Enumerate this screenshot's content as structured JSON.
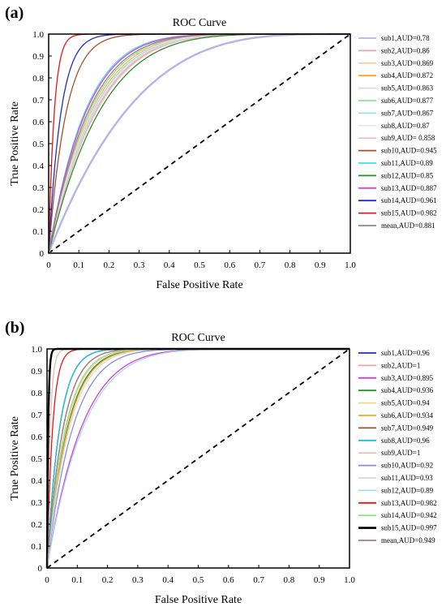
{
  "chart_data": [
    {
      "type": "line",
      "panel_label": "(a)",
      "title": "ROC Curve",
      "xlabel": "False Positive Rate",
      "ylabel": "True Positive Rate",
      "xlim": [
        0,
        1
      ],
      "ylim": [
        0,
        1
      ],
      "xticks": [
        "0",
        "0.1",
        "0.2",
        "0.3",
        "0.4",
        "0.5",
        "0.6",
        "0.7",
        "0.8",
        "0.9",
        "1.0"
      ],
      "yticks": [
        "0",
        "0.1",
        "0.2",
        "0.3",
        "0.4",
        "0.5",
        "0.6",
        "0.7",
        "0.8",
        "0.9",
        "1.0"
      ],
      "grid": false,
      "legend_position": "right",
      "diagonal": true,
      "series": [
        {
          "name": "sub1,AUD=0.78",
          "color": "#b4b4e6",
          "auc": 0.78
        },
        {
          "name": "sub2,AUD=0.86",
          "color": "#eda6a6",
          "auc": 0.86
        },
        {
          "name": "sub3,AUD=0.869",
          "color": "#f3cf9a",
          "auc": 0.869
        },
        {
          "name": "sub4,AUD=0.872",
          "color": "#f5a623",
          "auc": 0.872
        },
        {
          "name": "sub5,AUD=0.863",
          "color": "#d8d8d8",
          "auc": 0.863
        },
        {
          "name": "sub6,AUD=0.877",
          "color": "#8fe08f",
          "auc": 0.877
        },
        {
          "name": "sub7,AUD=0.867",
          "color": "#a8d8f0",
          "auc": 0.867
        },
        {
          "name": "sub8,AUD=0.87",
          "color": "#e8e8e8",
          "auc": 0.87
        },
        {
          "name": "sub9,AUD= 0.858",
          "color": "#f0c0c0",
          "auc": 0.858
        },
        {
          "name": "sub10,AUD=0.945",
          "color": "#a0522d",
          "auc": 0.945
        },
        {
          "name": "sub11,AUD=0.89",
          "color": "#40e0e0",
          "auc": 0.89
        },
        {
          "name": "sub12,AUD=0.85",
          "color": "#2e8b2e",
          "auc": 0.85
        },
        {
          "name": "sub13,AUD=0.887",
          "color": "#e040e0",
          "auc": 0.887
        },
        {
          "name": "sub14,AUD=0.961",
          "color": "#1e2fc0",
          "auc": 0.961
        },
        {
          "name": "sub15,AUD=0.982",
          "color": "#e01818",
          "auc": 0.982
        },
        {
          "name": "mean,AUD=0.881",
          "color": "#a08080",
          "auc": 0.881
        }
      ]
    },
    {
      "type": "line",
      "panel_label": "(b)",
      "title": "ROC Curve",
      "xlabel": "False Positive Rate",
      "ylabel": "True Positive Rate",
      "xlim": [
        0,
        1
      ],
      "ylim": [
        0,
        1
      ],
      "xticks": [
        "0",
        "0.1",
        "0.2",
        "0.3",
        "0.4",
        "0.5",
        "0.6",
        "0.7",
        "0.8",
        "0.9",
        "1.0"
      ],
      "yticks": [
        "0",
        "0.1",
        "0.2",
        "0.3",
        "0.4",
        "0.5",
        "0.6",
        "0.7",
        "0.8",
        "0.9",
        "1.0"
      ],
      "grid": false,
      "legend_position": "right",
      "diagonal": true,
      "series": [
        {
          "name": "sub1,AUD=0.96",
          "color": "#1e2fc0",
          "auc": 0.96
        },
        {
          "name": "sub2,AUD=1",
          "color": "#eda6a6",
          "auc": 0.99
        },
        {
          "name": "sub3,AUD=0.895",
          "color": "#d040d0",
          "auc": 0.895
        },
        {
          "name": "sub4,AUD=0.936",
          "color": "#2e8b2e",
          "auc": 0.936
        },
        {
          "name": "sub5,AUD=0.94",
          "color": "#f3cf9a",
          "auc": 0.94
        },
        {
          "name": "sub6,AUD=0.934",
          "color": "#f5a623",
          "auc": 0.934
        },
        {
          "name": "sub7,AUD=0.949",
          "color": "#a0522d",
          "auc": 0.949
        },
        {
          "name": "sub8,AUD=0.96",
          "color": "#20c0d0",
          "auc": 0.96
        },
        {
          "name": "sub9,AUD=1",
          "color": "#f0c0c0",
          "auc": 0.99
        },
        {
          "name": "sub10,AUD=0.92",
          "color": "#8a8ae0",
          "auc": 0.92
        },
        {
          "name": "sub11,AUD=0.93",
          "color": "#d8d8d8",
          "auc": 0.93
        },
        {
          "name": "sub12,AUD=0.89",
          "color": "#a8d8f0",
          "auc": 0.89
        },
        {
          "name": "sub13,AUD=0.982",
          "color": "#e01818",
          "auc": 0.982
        },
        {
          "name": "sub14,AUD=0.942",
          "color": "#8fe08f",
          "auc": 0.942
        },
        {
          "name": "sub15,AUD=0.997",
          "color": "#000000",
          "auc": 0.997
        },
        {
          "name": "mean,AUD=0.949",
          "color": "#a08080",
          "auc": 0.949
        }
      ]
    }
  ]
}
